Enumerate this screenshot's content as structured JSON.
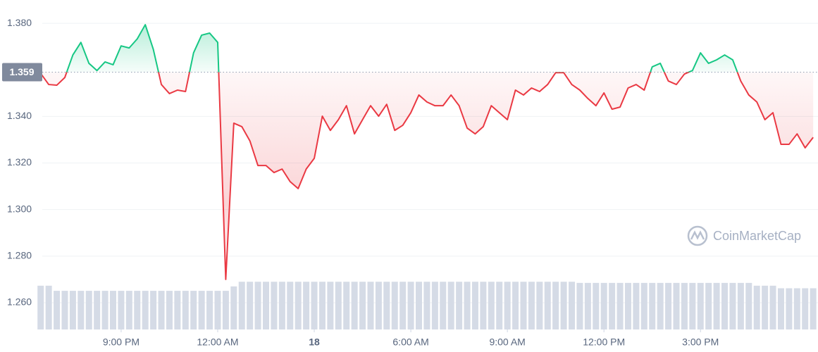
{
  "chart_data": {
    "type": "line",
    "watermark": "CoinMarketCap",
    "baseline": 1.359,
    "up_color": "#16c784",
    "down_color": "#ea3943",
    "grid": true,
    "xlim": [
      18.55,
      42.65
    ],
    "xticks": [
      {
        "value": 21,
        "label": "9:00 PM"
      },
      {
        "value": 24,
        "label": "12:00 AM"
      },
      {
        "value": 27,
        "label": "18"
      },
      {
        "value": 30,
        "label": "6:00 AM"
      },
      {
        "value": 33,
        "label": "9:00 AM"
      },
      {
        "value": 36,
        "label": "12:00 PM"
      },
      {
        "value": 39,
        "label": "3:00 PM"
      }
    ],
    "ylim": [
      1.2485,
      1.39
    ],
    "yticks": [
      {
        "value": 1.26,
        "label": "1.260"
      },
      {
        "value": 1.28,
        "label": "1.280"
      },
      {
        "value": 1.3,
        "label": "1.300"
      },
      {
        "value": 1.32,
        "label": "1.320"
      },
      {
        "value": 1.34,
        "label": "1.340"
      },
      {
        "value": 1.38,
        "label": "1.380"
      }
    ],
    "x": [
      18.5,
      18.75,
      19,
      19.25,
      19.5,
      19.75,
      20,
      20.25,
      20.5,
      20.75,
      21,
      21.25,
      21.5,
      21.75,
      22,
      22.25,
      22.5,
      22.75,
      23,
      23.25,
      23.5,
      23.75,
      24,
      24.25,
      24.5,
      24.75,
      25,
      25.25,
      25.5,
      25.75,
      26,
      26.25,
      26.5,
      26.75,
      27,
      27.25,
      27.5,
      27.75,
      28,
      28.25,
      28.5,
      28.75,
      29,
      29.25,
      29.5,
      29.75,
      30,
      30.25,
      30.5,
      30.75,
      31,
      31.25,
      31.5,
      31.75,
      32,
      32.25,
      32.5,
      32.75,
      33,
      33.25,
      33.5,
      33.75,
      34,
      34.25,
      34.5,
      34.75,
      35,
      35.25,
      35.5,
      35.75,
      36,
      36.25,
      36.5,
      36.75,
      37,
      37.25,
      37.5,
      37.75,
      38,
      38.25,
      38.5,
      38.75,
      39,
      39.25,
      39.5,
      39.75,
      40,
      40.25,
      40.5,
      40.75,
      41,
      41.25,
      41.5,
      41.75,
      42,
      42.25,
      42.5
    ],
    "values": [
      1.3585,
      1.3537,
      1.3534,
      1.3567,
      1.3664,
      1.3718,
      1.3628,
      1.3597,
      1.3634,
      1.3622,
      1.3703,
      1.3694,
      1.3733,
      1.3794,
      1.3688,
      1.3537,
      1.3498,
      1.3513,
      1.3507,
      1.3673,
      1.3749,
      1.3758,
      1.3718,
      1.27,
      1.3371,
      1.3356,
      1.3295,
      1.3189,
      1.3189,
      1.3159,
      1.3174,
      1.312,
      1.309,
      1.3174,
      1.322,
      1.3401,
      1.334,
      1.3386,
      1.3446,
      1.3325,
      1.3386,
      1.3446,
      1.3401,
      1.3452,
      1.334,
      1.3362,
      1.3416,
      1.3492,
      1.3462,
      1.3446,
      1.3446,
      1.3492,
      1.3446,
      1.335,
      1.3325,
      1.3356,
      1.3446,
      1.3416,
      1.3386,
      1.3513,
      1.3492,
      1.3522,
      1.3507,
      1.3537,
      1.3588,
      1.3588,
      1.3537,
      1.3513,
      1.3477,
      1.3446,
      1.3501,
      1.3431,
      1.344,
      1.3522,
      1.3537,
      1.3513,
      1.3613,
      1.3628,
      1.3552,
      1.3537,
      1.3582,
      1.3597,
      1.3673,
      1.3628,
      1.3643,
      1.3664,
      1.3643,
      1.3552,
      1.3492,
      1.3462,
      1.3386,
      1.3416,
      1.328,
      1.328,
      1.3325,
      1.3265,
      1.331
    ],
    "volume": {
      "color": "#d5dbe6",
      "values": [
        1.2673,
        1.2673,
        1.2651,
        1.2651,
        1.2651,
        1.2651,
        1.2651,
        1.2651,
        1.2651,
        1.2651,
        1.2651,
        1.2651,
        1.2651,
        1.2651,
        1.2651,
        1.2651,
        1.2651,
        1.2651,
        1.2651,
        1.2651,
        1.2651,
        1.2651,
        1.2651,
        1.2651,
        1.267,
        1.269,
        1.269,
        1.269,
        1.269,
        1.269,
        1.269,
        1.269,
        1.269,
        1.269,
        1.269,
        1.269,
        1.269,
        1.269,
        1.269,
        1.269,
        1.269,
        1.269,
        1.269,
        1.269,
        1.269,
        1.269,
        1.269,
        1.269,
        1.269,
        1.269,
        1.269,
        1.269,
        1.269,
        1.269,
        1.269,
        1.269,
        1.269,
        1.269,
        1.269,
        1.269,
        1.269,
        1.269,
        1.269,
        1.269,
        1.269,
        1.269,
        1.269,
        1.2685,
        1.2685,
        1.2685,
        1.2685,
        1.2685,
        1.2685,
        1.2685,
        1.2685,
        1.2685,
        1.2685,
        1.2685,
        1.2685,
        1.2685,
        1.2685,
        1.2685,
        1.2685,
        1.2685,
        1.2685,
        1.2685,
        1.2685,
        1.2685,
        1.2685,
        1.2673,
        1.2673,
        1.2673,
        1.2662,
        1.2662,
        1.2662,
        1.2662,
        1.2662
      ]
    }
  }
}
